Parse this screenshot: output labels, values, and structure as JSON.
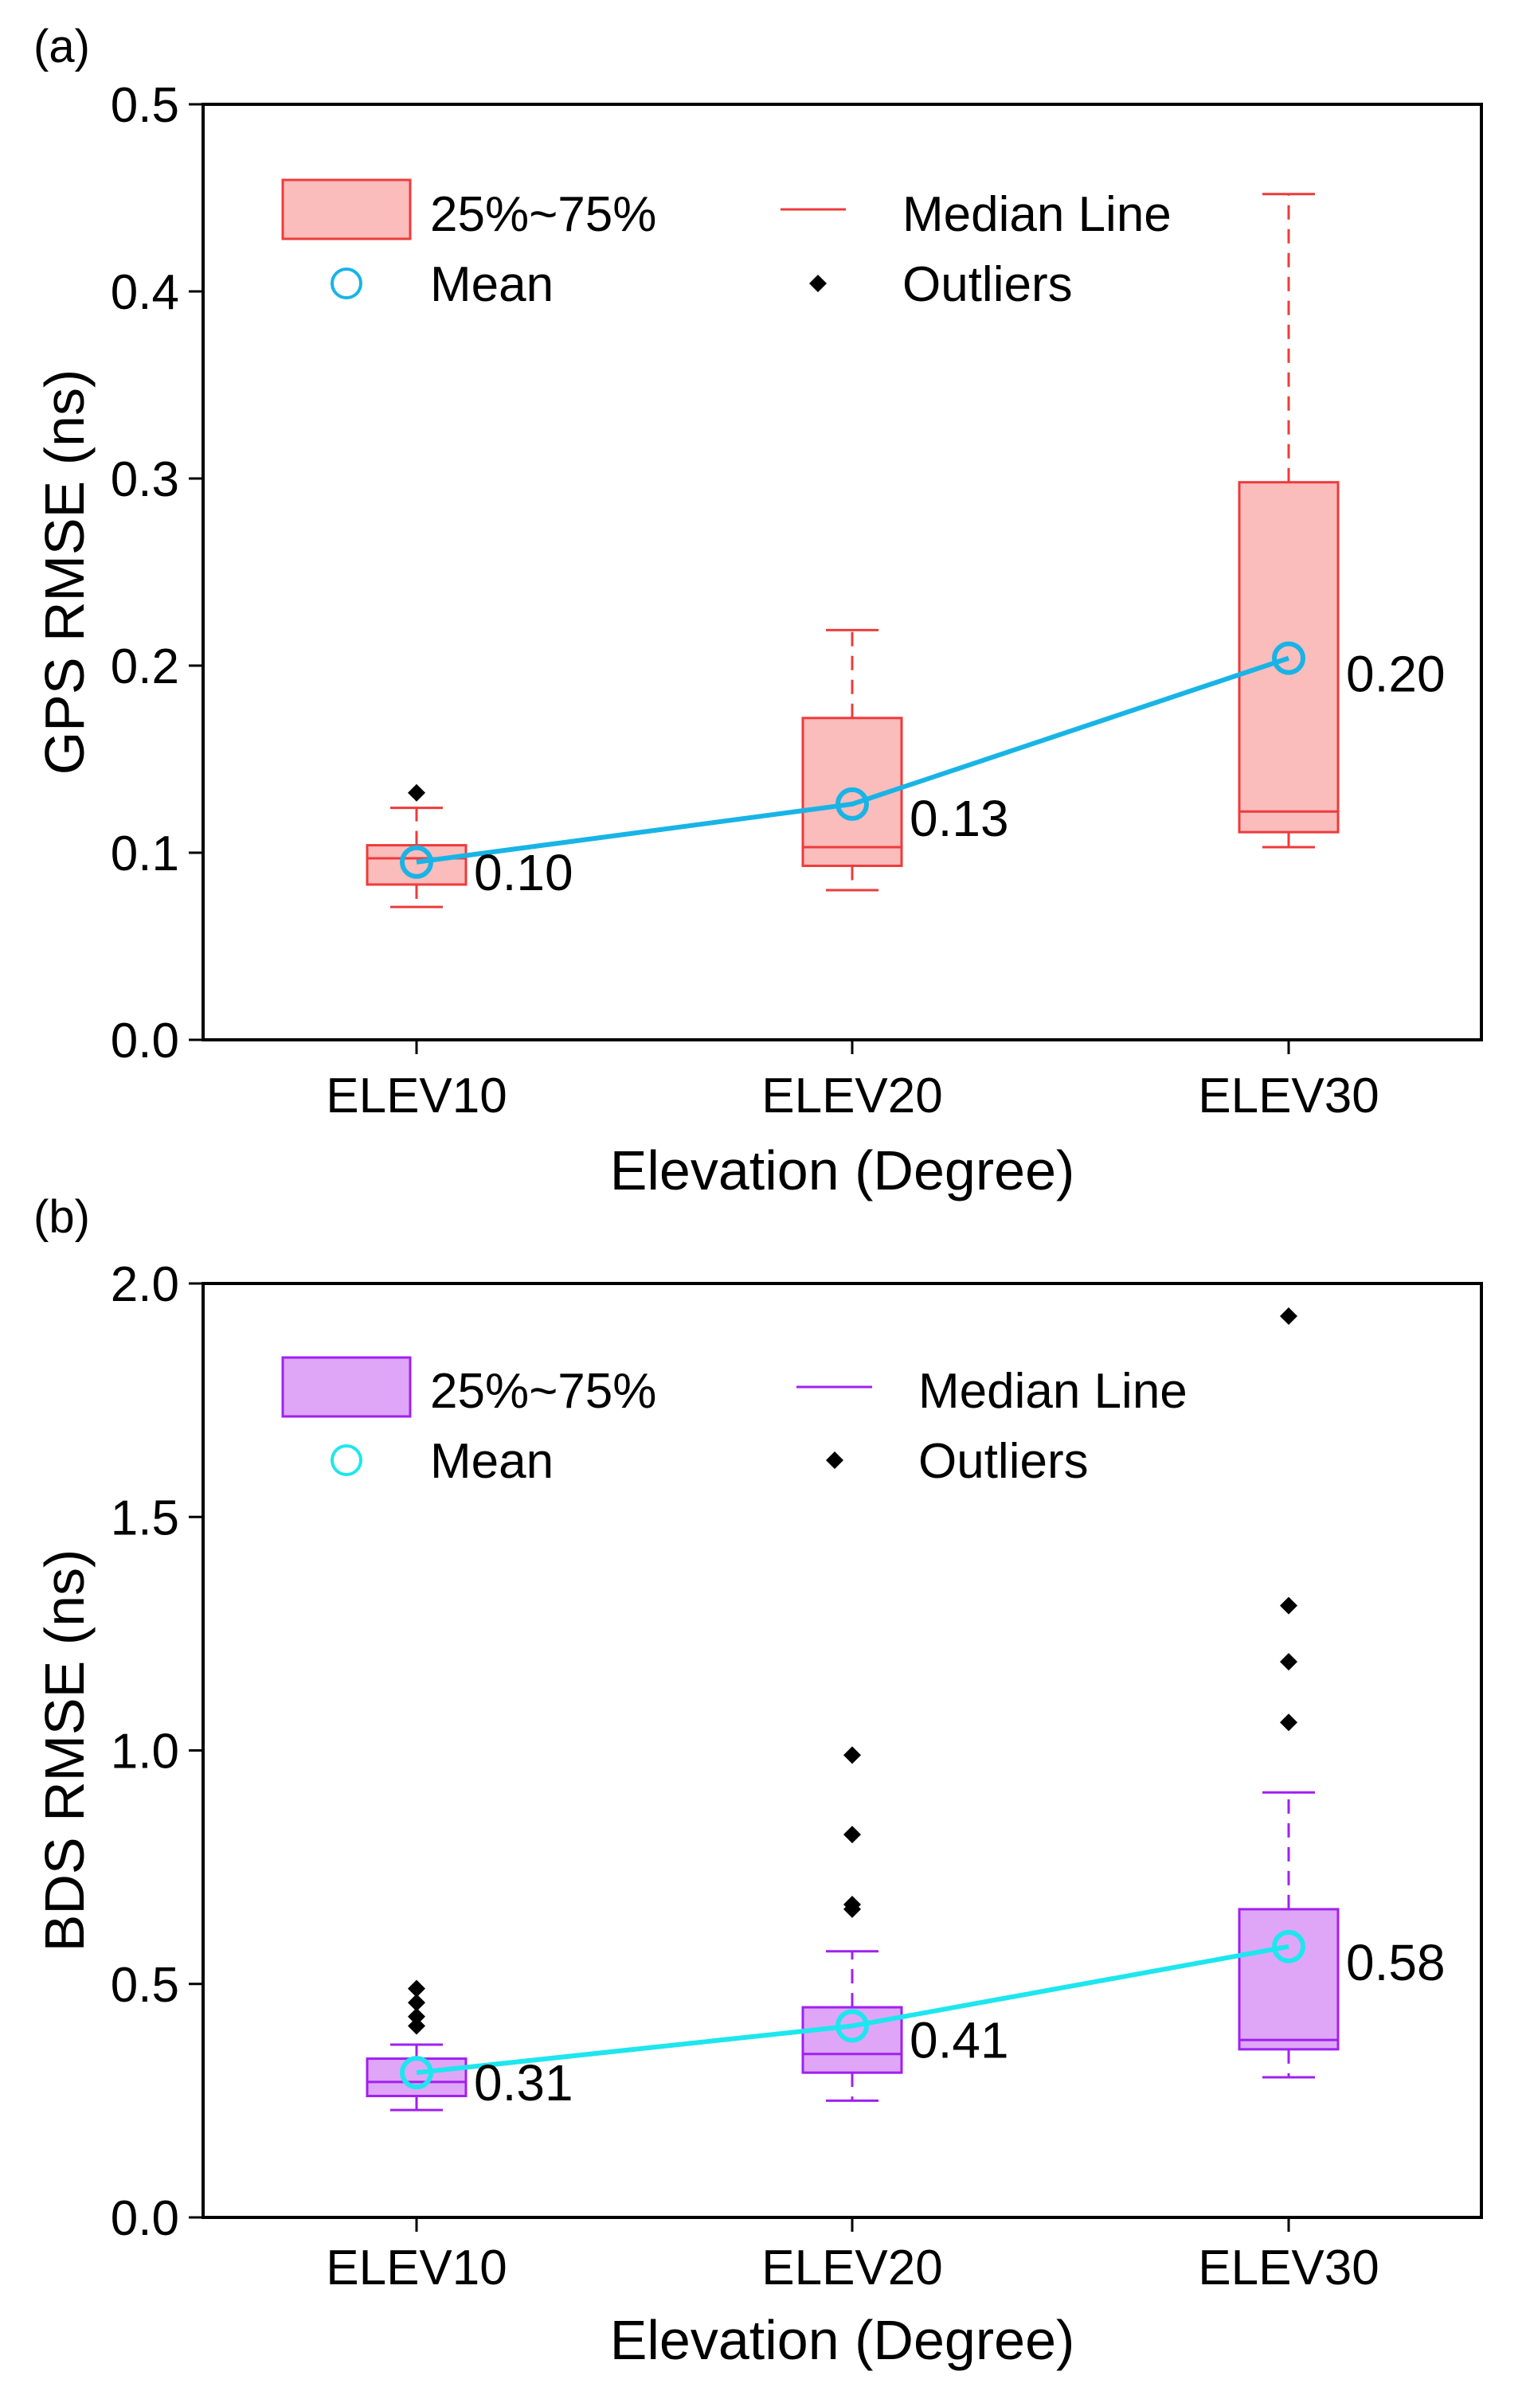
{
  "chart_data": [
    {
      "type": "box",
      "panel_label": "(a)",
      "ylabel": "GPS RMSE (ns)",
      "xlabel": "Elevation (Degree)",
      "ylim": [
        0.0,
        0.5
      ],
      "yticks": [
        0.0,
        0.1,
        0.2,
        0.3,
        0.4,
        0.5
      ],
      "ytick_labels": [
        "0.0",
        "0.1",
        "0.2",
        "0.3",
        "0.4",
        "0.5"
      ],
      "categories": [
        "ELEV10",
        "ELEV20",
        "ELEV30"
      ],
      "colors": {
        "box_stroke": "#ee3b3b",
        "box_fill": "#fbbcbc",
        "median": "#ee3b3b",
        "mean": "#18b4e6",
        "outlier": "#000000"
      },
      "legend": {
        "box": "25%~75%",
        "median": "Median Line",
        "mean": "Mean",
        "outliers": "Outliers"
      },
      "boxes": [
        {
          "category": "ELEV10",
          "whisker_low": 0.071,
          "q1": 0.083,
          "median": 0.097,
          "q3": 0.104,
          "whisker_high": 0.124,
          "mean": 0.095,
          "outliers": [
            0.132
          ]
        },
        {
          "category": "ELEV20",
          "whisker_low": 0.08,
          "q1": 0.093,
          "median": 0.103,
          "q3": 0.172,
          "whisker_high": 0.219,
          "mean": 0.126,
          "outliers": []
        },
        {
          "category": "ELEV30",
          "whisker_low": 0.103,
          "q1": 0.111,
          "median": 0.122,
          "q3": 0.298,
          "whisker_high": 0.452,
          "mean": 0.204,
          "outliers": []
        }
      ],
      "mean_labels": [
        "0.10",
        "0.13",
        "0.20"
      ]
    },
    {
      "type": "box",
      "panel_label": "(b)",
      "ylabel": "BDS RMSE (ns)",
      "xlabel": "Elevation (Degree)",
      "ylim": [
        0.0,
        2.0
      ],
      "yticks": [
        0.0,
        0.5,
        1.0,
        1.5,
        2.0
      ],
      "ytick_labels": [
        "0.0",
        "0.5",
        "1.0",
        "1.5",
        "2.0"
      ],
      "categories": [
        "ELEV10",
        "ELEV20",
        "ELEV30"
      ],
      "colors": {
        "box_stroke": "#a020f0",
        "box_fill": "#dfa6f7",
        "median": "#a020f0",
        "mean": "#1ee6ee",
        "outlier": "#000000"
      },
      "legend": {
        "box": "25%~75%",
        "median": "Median Line",
        "mean": "Mean",
        "outliers": "Outliers"
      },
      "boxes": [
        {
          "category": "ELEV10",
          "whisker_low": 0.23,
          "q1": 0.26,
          "median": 0.29,
          "q3": 0.34,
          "whisker_high": 0.37,
          "mean": 0.31,
          "outliers": [
            0.41,
            0.43,
            0.46,
            0.49
          ]
        },
        {
          "category": "ELEV20",
          "whisker_low": 0.25,
          "q1": 0.31,
          "median": 0.35,
          "q3": 0.45,
          "whisker_high": 0.57,
          "mean": 0.41,
          "outliers": [
            0.66,
            0.67,
            0.82,
            0.99
          ]
        },
        {
          "category": "ELEV30",
          "whisker_low": 0.3,
          "q1": 0.36,
          "median": 0.38,
          "q3": 0.66,
          "whisker_high": 0.91,
          "mean": 0.58,
          "outliers": [
            1.06,
            1.19,
            1.31,
            1.93
          ]
        }
      ],
      "mean_labels": [
        "0.31",
        "0.41",
        "0.58"
      ]
    }
  ]
}
